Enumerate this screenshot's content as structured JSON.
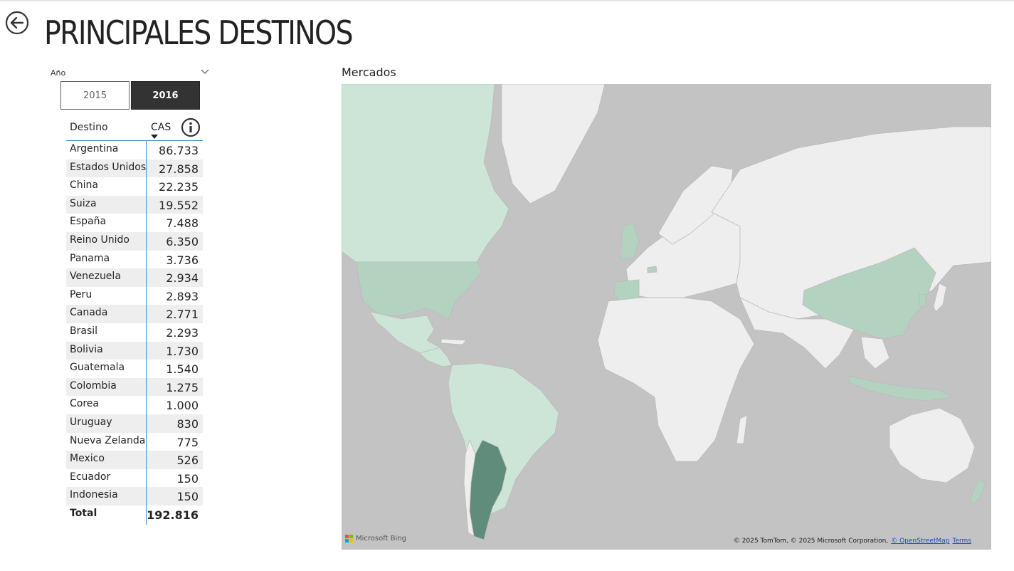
{
  "page": {
    "title": "PRINCIPALES DESTINOS",
    "back_icon": "back-arrow-circle-icon"
  },
  "slicer": {
    "label": "Año",
    "options": [
      "2015",
      "2016"
    ],
    "selected": "2016"
  },
  "table": {
    "headers": {
      "destination": "Destino",
      "value": "CAS"
    },
    "sort": "descending",
    "info_icon": "info-icon",
    "rows": [
      {
        "name": "Argentina",
        "value": "86.733"
      },
      {
        "name": "Estados Unidos",
        "value": "27.858"
      },
      {
        "name": "China",
        "value": "22.235"
      },
      {
        "name": "Suiza",
        "value": "19.552"
      },
      {
        "name": "España",
        "value": "7.488"
      },
      {
        "name": "Reino Unido",
        "value": "6.350"
      },
      {
        "name": "Panama",
        "value": "3.736"
      },
      {
        "name": "Venezuela",
        "value": "2.934"
      },
      {
        "name": "Peru",
        "value": "2.893"
      },
      {
        "name": "Canada",
        "value": "2.771"
      },
      {
        "name": "Brasil",
        "value": "2.293"
      },
      {
        "name": "Bolivia",
        "value": "1.730"
      },
      {
        "name": "Guatemala",
        "value": "1.540"
      },
      {
        "name": "Colombia",
        "value": "1.275"
      },
      {
        "name": "Corea",
        "value": "1.000"
      },
      {
        "name": "Uruguay",
        "value": "830"
      },
      {
        "name": "Nueva Zelanda",
        "value": "775"
      },
      {
        "name": "Mexico",
        "value": "526"
      },
      {
        "name": "Ecuador",
        "value": "150"
      },
      {
        "name": "Indonesia",
        "value": "150"
      }
    ],
    "total": {
      "name": "Total",
      "value": "192.816"
    }
  },
  "map": {
    "title": "Mercados",
    "provider": "Microsoft Bing",
    "copyright": "© 2025 TomTom, © 2025 Microsoft Corporation,",
    "osm_link": "© OpenStreetMap",
    "terms_link": "Terms",
    "colors": {
      "ocean": "#c3c3c3",
      "land": "#eeeeee",
      "low": "#cde5d6",
      "mid": "#b4d2c0",
      "high": "#5f8c7b"
    }
  }
}
